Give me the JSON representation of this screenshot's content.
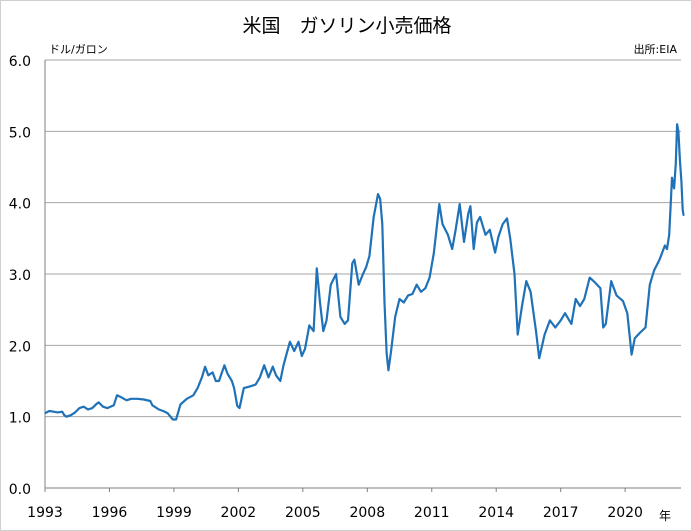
{
  "chart_data": {
    "type": "line",
    "title": "米国　ガソリン小売価格",
    "ylabel": "ドル/ガロン",
    "xlabel": "年",
    "source": "出所:EIA",
    "ylim": [
      0,
      6
    ],
    "xlim": [
      1993,
      2022.6
    ],
    "y_ticks": [
      "0.0",
      "1.0",
      "2.0",
      "3.0",
      "4.0",
      "5.0",
      "6.0"
    ],
    "x_ticks": [
      "1993",
      "1996",
      "1999",
      "2002",
      "2005",
      "2008",
      "2011",
      "2014",
      "2017",
      "2020"
    ],
    "grid": "horizontal",
    "colors": {
      "line": "#1f72b8",
      "grid": "#a6a6a6",
      "axis": "#7f7f7f"
    },
    "series": [
      {
        "values": [
          [
            1993.0,
            1.05
          ],
          [
            1993.2,
            1.08
          ],
          [
            1993.4,
            1.07
          ],
          [
            1993.6,
            1.06
          ],
          [
            1993.8,
            1.07
          ],
          [
            1993.9,
            1.02
          ],
          [
            1994.0,
            1.0
          ],
          [
            1994.2,
            1.02
          ],
          [
            1994.4,
            1.06
          ],
          [
            1994.6,
            1.12
          ],
          [
            1994.8,
            1.14
          ],
          [
            1995.0,
            1.1
          ],
          [
            1995.2,
            1.12
          ],
          [
            1995.4,
            1.18
          ],
          [
            1995.5,
            1.2
          ],
          [
            1995.7,
            1.14
          ],
          [
            1995.9,
            1.12
          ],
          [
            1996.2,
            1.16
          ],
          [
            1996.35,
            1.3
          ],
          [
            1996.5,
            1.28
          ],
          [
            1996.8,
            1.23
          ],
          [
            1997.0,
            1.25
          ],
          [
            1997.3,
            1.25
          ],
          [
            1997.6,
            1.24
          ],
          [
            1997.9,
            1.22
          ],
          [
            1998.0,
            1.16
          ],
          [
            1998.3,
            1.1
          ],
          [
            1998.5,
            1.08
          ],
          [
            1998.7,
            1.05
          ],
          [
            1998.95,
            0.96
          ],
          [
            1999.1,
            0.96
          ],
          [
            1999.3,
            1.17
          ],
          [
            1999.6,
            1.25
          ],
          [
            1999.9,
            1.3
          ],
          [
            2000.1,
            1.4
          ],
          [
            2000.3,
            1.55
          ],
          [
            2000.45,
            1.7
          ],
          [
            2000.6,
            1.58
          ],
          [
            2000.8,
            1.62
          ],
          [
            2000.95,
            1.5
          ],
          [
            2001.1,
            1.5
          ],
          [
            2001.35,
            1.72
          ],
          [
            2001.5,
            1.6
          ],
          [
            2001.7,
            1.5
          ],
          [
            2001.8,
            1.4
          ],
          [
            2001.95,
            1.15
          ],
          [
            2002.05,
            1.12
          ],
          [
            2002.25,
            1.4
          ],
          [
            2002.5,
            1.42
          ],
          [
            2002.8,
            1.45
          ],
          [
            2003.0,
            1.55
          ],
          [
            2003.2,
            1.72
          ],
          [
            2003.4,
            1.55
          ],
          [
            2003.6,
            1.7
          ],
          [
            2003.75,
            1.58
          ],
          [
            2003.95,
            1.5
          ],
          [
            2004.1,
            1.72
          ],
          [
            2004.4,
            2.05
          ],
          [
            2004.6,
            1.92
          ],
          [
            2004.8,
            2.05
          ],
          [
            2004.95,
            1.85
          ],
          [
            2005.1,
            1.95
          ],
          [
            2005.3,
            2.28
          ],
          [
            2005.5,
            2.2
          ],
          [
            2005.65,
            3.08
          ],
          [
            2005.8,
            2.6
          ],
          [
            2005.95,
            2.2
          ],
          [
            2006.1,
            2.35
          ],
          [
            2006.3,
            2.85
          ],
          [
            2006.55,
            3.0
          ],
          [
            2006.75,
            2.4
          ],
          [
            2006.95,
            2.3
          ],
          [
            2007.1,
            2.35
          ],
          [
            2007.3,
            3.15
          ],
          [
            2007.4,
            3.2
          ],
          [
            2007.6,
            2.85
          ],
          [
            2007.8,
            3.0
          ],
          [
            2007.95,
            3.1
          ],
          [
            2008.1,
            3.25
          ],
          [
            2008.3,
            3.8
          ],
          [
            2008.5,
            4.12
          ],
          [
            2008.6,
            4.05
          ],
          [
            2008.7,
            3.7
          ],
          [
            2008.8,
            2.6
          ],
          [
            2008.9,
            1.9
          ],
          [
            2008.98,
            1.65
          ],
          [
            2009.1,
            1.9
          ],
          [
            2009.3,
            2.4
          ],
          [
            2009.5,
            2.65
          ],
          [
            2009.7,
            2.6
          ],
          [
            2009.9,
            2.7
          ],
          [
            2010.1,
            2.72
          ],
          [
            2010.3,
            2.85
          ],
          [
            2010.5,
            2.75
          ],
          [
            2010.7,
            2.8
          ],
          [
            2010.9,
            2.95
          ],
          [
            2011.1,
            3.3
          ],
          [
            2011.35,
            3.98
          ],
          [
            2011.5,
            3.7
          ],
          [
            2011.75,
            3.55
          ],
          [
            2011.95,
            3.35
          ],
          [
            2012.1,
            3.6
          ],
          [
            2012.3,
            3.98
          ],
          [
            2012.5,
            3.45
          ],
          [
            2012.7,
            3.85
          ],
          [
            2012.8,
            3.95
          ],
          [
            2012.95,
            3.35
          ],
          [
            2013.1,
            3.72
          ],
          [
            2013.25,
            3.8
          ],
          [
            2013.5,
            3.55
          ],
          [
            2013.7,
            3.62
          ],
          [
            2013.95,
            3.3
          ],
          [
            2014.1,
            3.52
          ],
          [
            2014.3,
            3.7
          ],
          [
            2014.5,
            3.78
          ],
          [
            2014.65,
            3.5
          ],
          [
            2014.85,
            3.0
          ],
          [
            2015.0,
            2.15
          ],
          [
            2015.2,
            2.55
          ],
          [
            2015.4,
            2.9
          ],
          [
            2015.6,
            2.75
          ],
          [
            2015.85,
            2.2
          ],
          [
            2016.0,
            1.82
          ],
          [
            2016.25,
            2.15
          ],
          [
            2016.5,
            2.35
          ],
          [
            2016.75,
            2.25
          ],
          [
            2017.0,
            2.35
          ],
          [
            2017.2,
            2.45
          ],
          [
            2017.5,
            2.3
          ],
          [
            2017.7,
            2.65
          ],
          [
            2017.9,
            2.55
          ],
          [
            2018.1,
            2.65
          ],
          [
            2018.35,
            2.95
          ],
          [
            2018.6,
            2.88
          ],
          [
            2018.85,
            2.8
          ],
          [
            2018.98,
            2.25
          ],
          [
            2019.1,
            2.3
          ],
          [
            2019.35,
            2.9
          ],
          [
            2019.6,
            2.7
          ],
          [
            2019.9,
            2.62
          ],
          [
            2020.1,
            2.45
          ],
          [
            2020.3,
            1.87
          ],
          [
            2020.45,
            2.1
          ],
          [
            2020.7,
            2.18
          ],
          [
            2020.95,
            2.25
          ],
          [
            2021.15,
            2.85
          ],
          [
            2021.35,
            3.05
          ],
          [
            2021.6,
            3.2
          ],
          [
            2021.85,
            3.4
          ],
          [
            2021.95,
            3.35
          ],
          [
            2022.05,
            3.55
          ],
          [
            2022.18,
            4.35
          ],
          [
            2022.28,
            4.2
          ],
          [
            2022.36,
            4.55
          ],
          [
            2022.42,
            5.1
          ],
          [
            2022.48,
            5.0
          ],
          [
            2022.55,
            4.6
          ],
          [
            2022.62,
            4.3
          ],
          [
            2022.68,
            3.9
          ],
          [
            2022.72,
            3.82
          ]
        ]
      }
    ]
  }
}
